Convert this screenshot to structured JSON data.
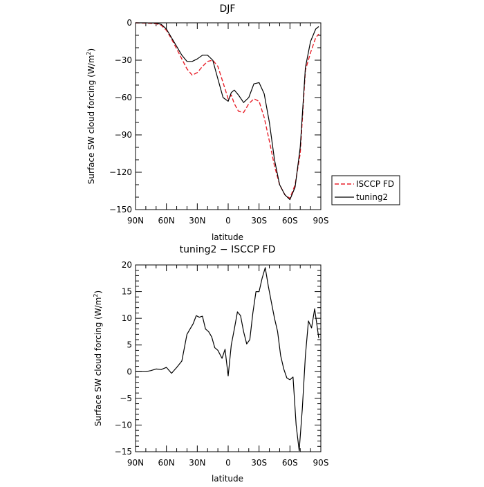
{
  "chart_data": [
    {
      "type": "line",
      "title": "DJF",
      "xlabel": "latitude",
      "ylabel": "Surface SW cloud forcing (W/m",
      "ylabel_sup": "2",
      "ylabel_close": ")",
      "x_axis_note": "latitude from 90N (left) to 90S (right); values are degrees with north positive",
      "xlim": [
        90,
        -90
      ],
      "ylim": [
        -150,
        0
      ],
      "x_ticks": [
        {
          "value": 90,
          "label": "90N"
        },
        {
          "value": 60,
          "label": "60N"
        },
        {
          "value": 30,
          "label": "30N"
        },
        {
          "value": 0,
          "label": "0"
        },
        {
          "value": -30,
          "label": "30S"
        },
        {
          "value": -60,
          "label": "60S"
        },
        {
          "value": -90,
          "label": "90S"
        }
      ],
      "x_minor_step": 10,
      "y_ticks": [
        {
          "value": 0,
          "label": "0"
        },
        {
          "value": -30,
          "label": "−30"
        },
        {
          "value": -60,
          "label": "−60"
        },
        {
          "value": -90,
          "label": "−90"
        },
        {
          "value": -120,
          "label": "−120"
        },
        {
          "value": -150,
          "label": "−150"
        }
      ],
      "y_minor_step": 10,
      "legend": "outside-right",
      "series": [
        {
          "name": "ISCCP FD",
          "color": "#e8202a",
          "dash": true,
          "x": [
            90,
            80,
            70,
            65,
            60,
            55,
            50,
            45,
            40,
            35,
            30,
            25,
            20,
            15,
            10,
            5,
            0,
            -3,
            -6,
            -10,
            -15,
            -20,
            -25,
            -30,
            -35,
            -40,
            -45,
            -50,
            -55,
            -60,
            -65,
            -70,
            -75,
            -80,
            -85,
            -88
          ],
          "y": [
            0,
            -0.2,
            -0.7,
            -2,
            -6,
            -13,
            -21,
            -29,
            -37,
            -42,
            -40,
            -35,
            -31,
            -30,
            -35,
            -48,
            -61,
            -58,
            -65,
            -71,
            -72,
            -65,
            -61,
            -63,
            -76,
            -95,
            -115,
            -130,
            -138,
            -141,
            -130,
            -105,
            -38,
            -24,
            -12,
            -9
          ]
        },
        {
          "name": "tuning2",
          "color": "#000000",
          "dash": false,
          "x": [
            90,
            80,
            70,
            65,
            60,
            55,
            50,
            45,
            40,
            35,
            30,
            25,
            20,
            15,
            10,
            5,
            0,
            -3,
            -6,
            -10,
            -15,
            -20,
            -25,
            -30,
            -35,
            -40,
            -45,
            -50,
            -55,
            -60,
            -65,
            -70,
            -75,
            -80,
            -85,
            -88
          ],
          "y": [
            0,
            0,
            -0.3,
            -1.2,
            -5,
            -12,
            -19,
            -26,
            -31,
            -31,
            -29,
            -26,
            -26,
            -30,
            -45,
            -60,
            -63,
            -56,
            -54,
            -58,
            -64,
            -60,
            -49,
            -48,
            -57,
            -80,
            -110,
            -130,
            -138,
            -142,
            -132,
            -100,
            -36,
            -15,
            -5,
            -3
          ]
        }
      ]
    },
    {
      "type": "line",
      "title": "tuning2 − ISCCP FD",
      "xlabel": "latitude",
      "ylabel": "Surface SW cloud forcing (W/m",
      "ylabel_sup": "2",
      "ylabel_close": ")",
      "xlim": [
        90,
        -90
      ],
      "ylim": [
        -15,
        20
      ],
      "x_ticks": [
        {
          "value": 90,
          "label": "90N"
        },
        {
          "value": 60,
          "label": "60N"
        },
        {
          "value": 30,
          "label": "30N"
        },
        {
          "value": 0,
          "label": "0"
        },
        {
          "value": -30,
          "label": "30S"
        },
        {
          "value": -60,
          "label": "60S"
        },
        {
          "value": -90,
          "label": "90S"
        }
      ],
      "x_minor_step": 10,
      "y_ticks": [
        {
          "value": 20,
          "label": "20"
        },
        {
          "value": 15,
          "label": "15"
        },
        {
          "value": 10,
          "label": "10"
        },
        {
          "value": 5,
          "label": "5"
        },
        {
          "value": 0,
          "label": "0"
        },
        {
          "value": -5,
          "label": "−5"
        },
        {
          "value": -10,
          "label": "−10"
        },
        {
          "value": -15,
          "label": "−15"
        }
      ],
      "y_minor_step": 1,
      "series": [
        {
          "name": "",
          "color": "#000000",
          "dash": false,
          "x": [
            90,
            85,
            80,
            75,
            70,
            65,
            60,
            55,
            50,
            45,
            40,
            37,
            34,
            31,
            28,
            25,
            22,
            19,
            16,
            13,
            10,
            6,
            3,
            0,
            -3,
            -6,
            -9,
            -12,
            -15,
            -18,
            -21,
            -24,
            -27,
            -30,
            -33,
            -36,
            -39,
            -42,
            -45,
            -48,
            -51,
            -54,
            -57,
            -60,
            -63,
            -66,
            -69,
            -72,
            -75,
            -78,
            -81,
            -84,
            -88
          ],
          "y": [
            0,
            0,
            0,
            0.2,
            0.5,
            0.4,
            0.8,
            -0.3,
            0.8,
            2,
            7,
            8,
            9,
            10.5,
            10.2,
            10.4,
            8,
            7.5,
            6.5,
            4.5,
            4,
            2.5,
            4.2,
            -0.8,
            5,
            8,
            11.2,
            10.5,
            7.5,
            5.2,
            6,
            11,
            15,
            15,
            17.5,
            19.5,
            16,
            13,
            10,
            7.5,
            3,
            0.5,
            -1.2,
            -1.5,
            -1,
            -10,
            -14.8,
            -7,
            3,
            9.5,
            8.2,
            11.8,
            6.3
          ]
        }
      ]
    }
  ]
}
